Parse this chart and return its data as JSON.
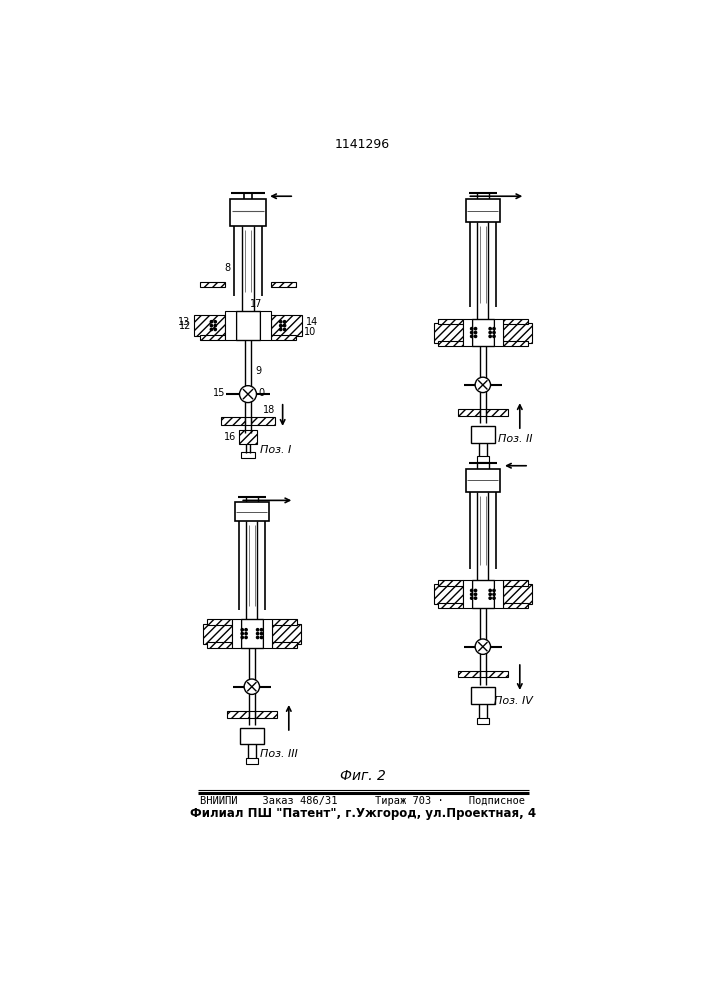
{
  "title": "1141296",
  "fig_label": "Фиг. 2",
  "footer_line1": "ВНИИПИ    Заказ 486/31      Тираж 703 ·    Подписное",
  "footer_line2": "Филиал ПШ \"Патент\", г.Ужгород, ул.Проектная, 4",
  "pos_I": "Поз. I",
  "pos_II": "Поз. II",
  "pos_III": "Поз. III",
  "pos_IV": "Поз. IV"
}
